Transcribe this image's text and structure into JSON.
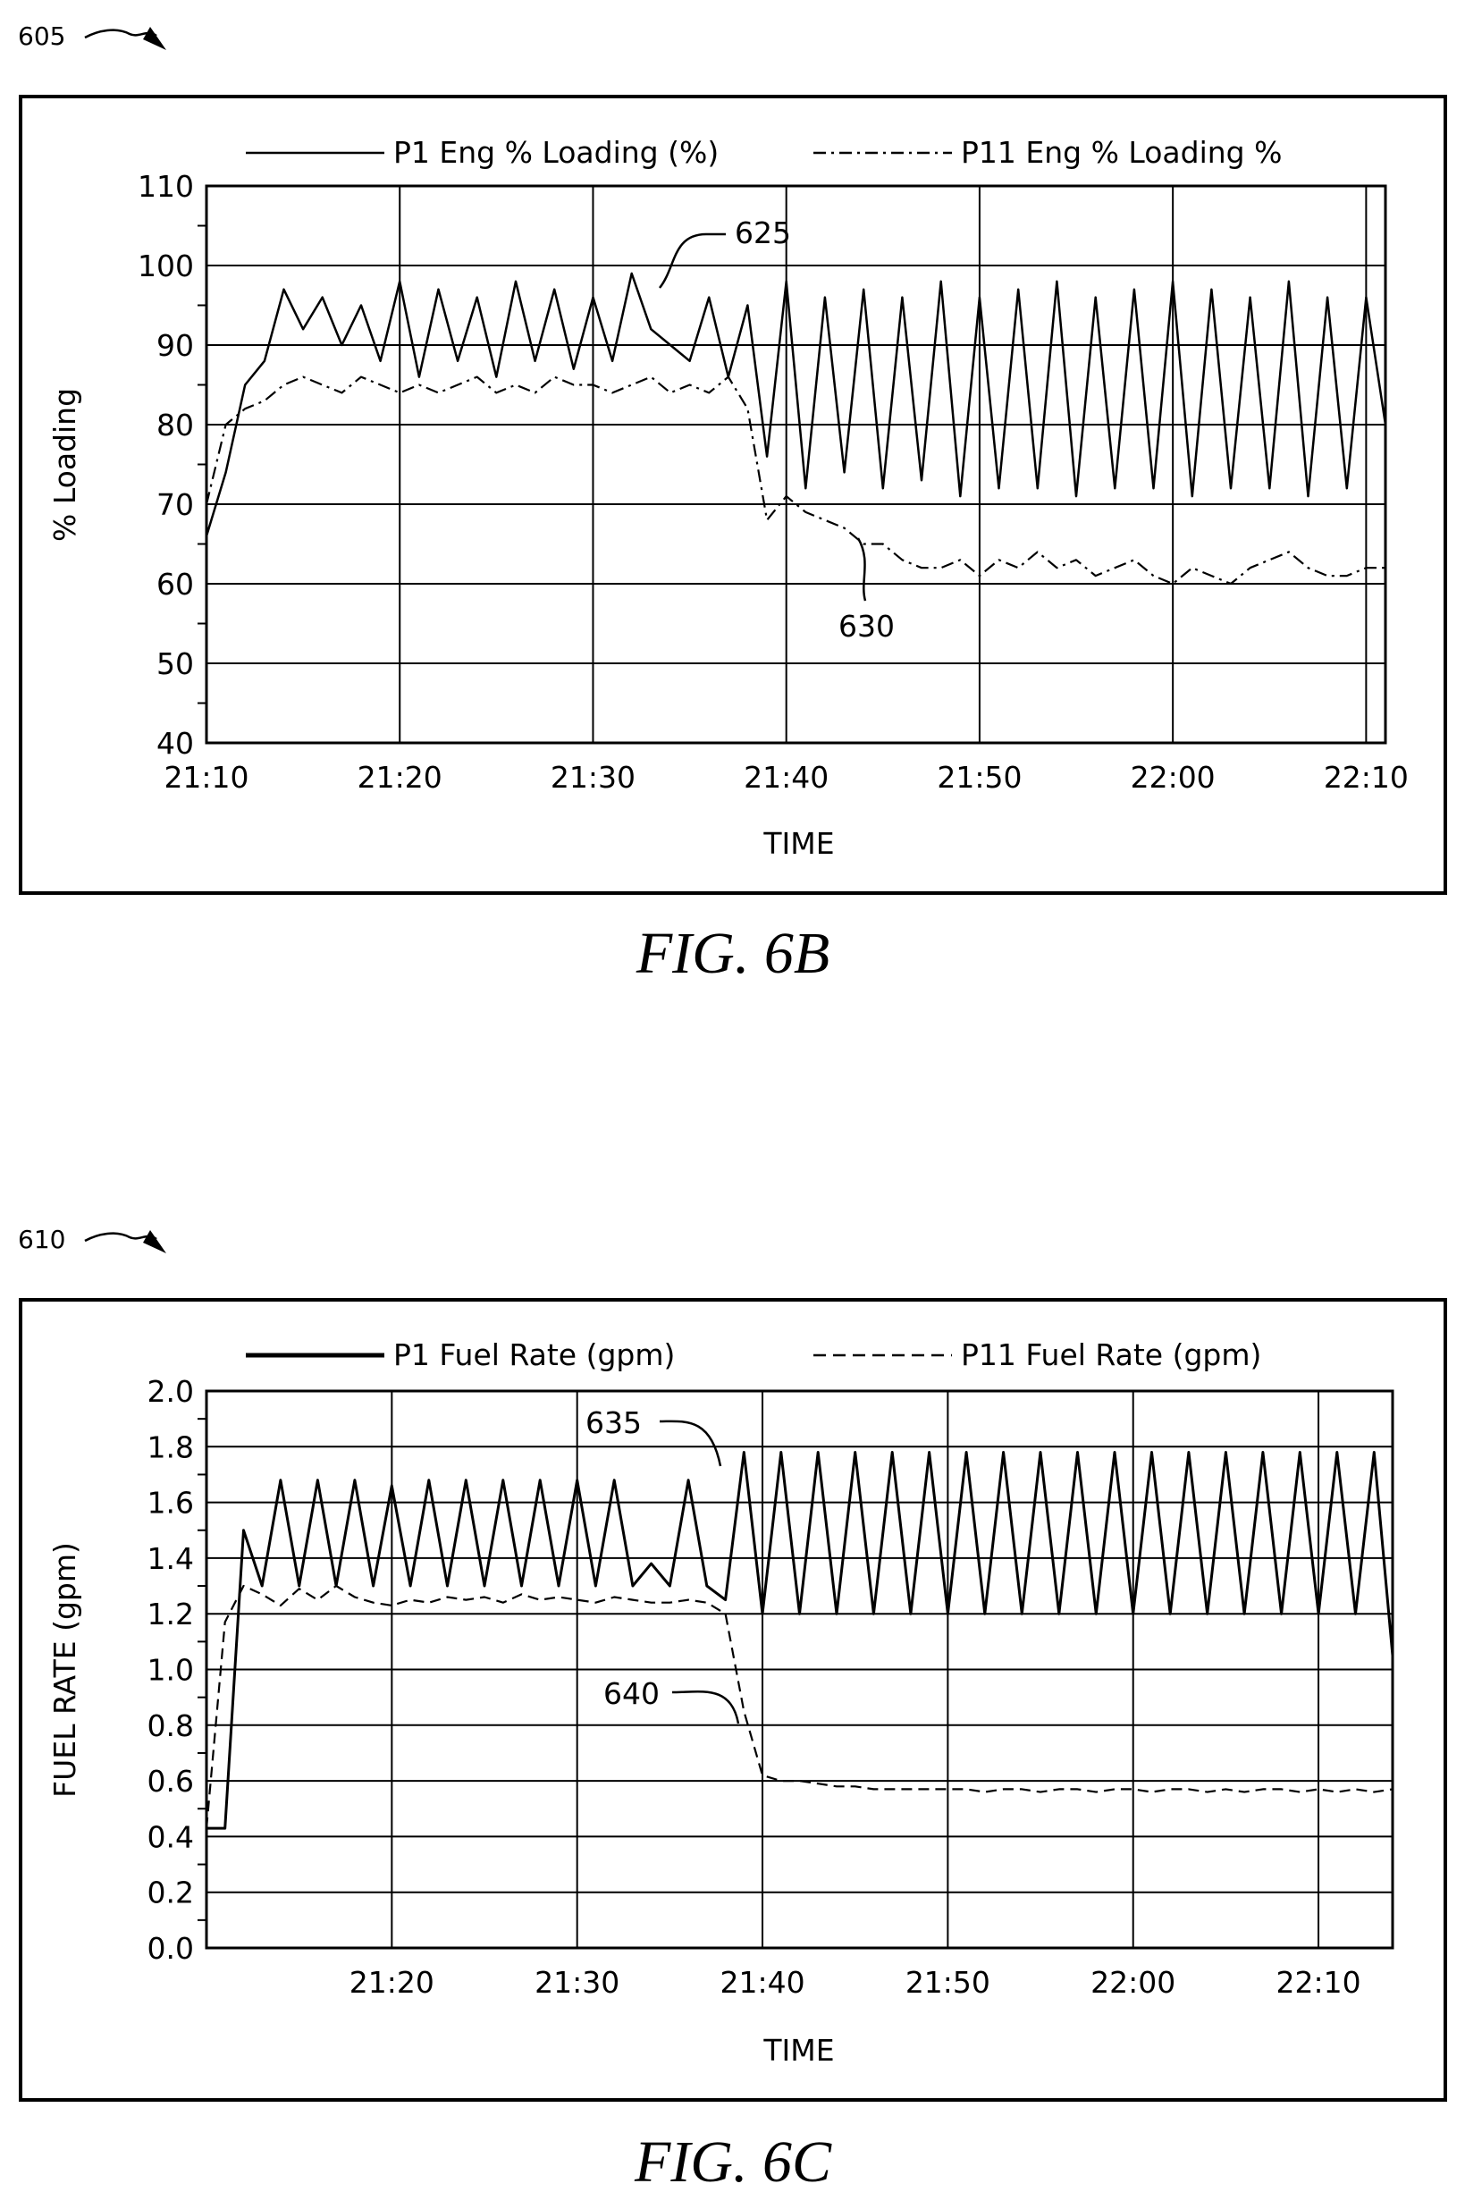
{
  "figures": [
    {
      "ref_label": "605",
      "caption": "FIG. 6B",
      "legend": [
        "P1 Eng % Loading (%)",
        "P11 Eng % Loading %"
      ],
      "annotations": [
        {
          "label": "625",
          "target_series": "P1 Eng % Loading (%)"
        },
        {
          "label": "630",
          "target_series": "P11 Eng % Loading %"
        }
      ]
    },
    {
      "ref_label": "610",
      "caption": "FIG. 6C",
      "legend": [
        "P1 Fuel Rate (gpm)",
        "P11 Fuel Rate (gpm)"
      ],
      "annotations": [
        {
          "label": "635",
          "target_series": "P1 Fuel Rate (gpm)"
        },
        {
          "label": "640",
          "target_series": "P11 Fuel Rate (gpm)"
        }
      ]
    }
  ],
  "chart_data": [
    {
      "type": "line",
      "title": "",
      "xlabel": "TIME",
      "ylabel": "% Loading",
      "xlim": [
        "21:10",
        "22:11"
      ],
      "ylim": [
        40,
        110
      ],
      "x_ticks": [
        "21:10",
        "21:20",
        "21:30",
        "21:40",
        "21:50",
        "22:00",
        "22:10"
      ],
      "y_ticks": [
        40,
        50,
        60,
        70,
        80,
        90,
        100,
        110
      ],
      "grid": true,
      "legend_position": "top",
      "series": [
        {
          "name": "P1 Eng % Loading (%)",
          "style": "solid",
          "x": [
            "21:10",
            "21:11",
            "21:12",
            "21:13",
            "21:14",
            "21:15",
            "21:16",
            "21:17",
            "21:18",
            "21:19",
            "21:20",
            "21:21",
            "21:22",
            "21:23",
            "21:24",
            "21:25",
            "21:26",
            "21:27",
            "21:28",
            "21:29",
            "21:30",
            "21:31",
            "21:32",
            "21:33",
            "21:34",
            "21:35",
            "21:36",
            "21:37",
            "21:38",
            "21:39",
            "21:40",
            "21:41",
            "21:42",
            "21:43",
            "21:44",
            "21:45",
            "21:46",
            "21:47",
            "21:48",
            "21:49",
            "21:50",
            "21:51",
            "21:52",
            "21:53",
            "21:54",
            "21:55",
            "21:56",
            "21:57",
            "21:58",
            "21:59",
            "22:00",
            "22:01",
            "22:02",
            "22:03",
            "22:04",
            "22:05",
            "22:06",
            "22:07",
            "22:08",
            "22:09",
            "22:10",
            "22:11"
          ],
          "values": [
            66,
            74,
            85,
            88,
            97,
            92,
            96,
            90,
            95,
            88,
            98,
            86,
            97,
            88,
            96,
            86,
            98,
            88,
            97,
            87,
            96,
            88,
            99,
            92,
            90,
            88,
            96,
            86,
            95,
            76,
            98,
            72,
            96,
            74,
            97,
            72,
            96,
            73,
            98,
            71,
            96,
            72,
            97,
            72,
            98,
            71,
            96,
            72,
            97,
            72,
            98,
            71,
            97,
            72,
            96,
            72,
            98,
            71,
            96,
            72,
            96,
            80
          ]
        },
        {
          "name": "P11 Eng % Loading %",
          "style": "dash-dot",
          "x": [
            "21:10",
            "21:11",
            "21:12",
            "21:13",
            "21:14",
            "21:15",
            "21:16",
            "21:17",
            "21:18",
            "21:19",
            "21:20",
            "21:21",
            "21:22",
            "21:23",
            "21:24",
            "21:25",
            "21:26",
            "21:27",
            "21:28",
            "21:29",
            "21:30",
            "21:31",
            "21:32",
            "21:33",
            "21:34",
            "21:35",
            "21:36",
            "21:37",
            "21:38",
            "21:39",
            "21:40",
            "21:41",
            "21:42",
            "21:43",
            "21:44",
            "21:45",
            "21:46",
            "21:47",
            "21:48",
            "21:49",
            "21:50",
            "21:51",
            "21:52",
            "21:53",
            "21:54",
            "21:55",
            "21:56",
            "21:57",
            "21:58",
            "21:59",
            "22:00",
            "22:01",
            "22:02",
            "22:03",
            "22:04",
            "22:05",
            "22:06",
            "22:07",
            "22:08",
            "22:09",
            "22:10",
            "22:11"
          ],
          "values": [
            70,
            80,
            82,
            83,
            85,
            86,
            85,
            84,
            86,
            85,
            84,
            85,
            84,
            85,
            86,
            84,
            85,
            84,
            86,
            85,
            85,
            84,
            85,
            86,
            84,
            85,
            84,
            86,
            82,
            68,
            71,
            69,
            68,
            67,
            65,
            65,
            63,
            62,
            62,
            63,
            61,
            63,
            62,
            64,
            62,
            63,
            61,
            62,
            63,
            61,
            60,
            62,
            61,
            60,
            62,
            63,
            64,
            62,
            61,
            61,
            62,
            62
          ]
        }
      ]
    },
    {
      "type": "line",
      "title": "",
      "xlabel": "TIME",
      "ylabel": "FUEL RATE (gpm)",
      "xlim": [
        "21:10",
        "22:14"
      ],
      "ylim": [
        0.0,
        2.0
      ],
      "x_ticks": [
        "21:20",
        "21:30",
        "21:40",
        "21:50",
        "22:00",
        "22:10"
      ],
      "y_ticks": [
        0.0,
        0.2,
        0.4,
        0.6,
        0.8,
        1.0,
        1.2,
        1.4,
        1.6,
        1.8,
        2.0
      ],
      "grid": true,
      "legend_position": "top",
      "series": [
        {
          "name": "P1 Fuel Rate (gpm)",
          "style": "solid",
          "x": [
            "21:10",
            "21:11",
            "21:12",
            "21:13",
            "21:14",
            "21:15",
            "21:16",
            "21:17",
            "21:18",
            "21:19",
            "21:20",
            "21:21",
            "21:22",
            "21:23",
            "21:24",
            "21:25",
            "21:26",
            "21:27",
            "21:28",
            "21:29",
            "21:30",
            "21:31",
            "21:32",
            "21:33",
            "21:34",
            "21:35",
            "21:36",
            "21:37",
            "21:38",
            "21:39",
            "21:40",
            "21:41",
            "21:42",
            "21:43",
            "21:44",
            "21:45",
            "21:46",
            "21:47",
            "21:48",
            "21:49",
            "21:50",
            "21:51",
            "21:52",
            "21:53",
            "21:54",
            "21:55",
            "21:56",
            "21:57",
            "21:58",
            "21:59",
            "22:00",
            "22:01",
            "22:02",
            "22:03",
            "22:04",
            "22:05",
            "22:06",
            "22:07",
            "22:08",
            "22:09",
            "22:10",
            "22:11",
            "22:12",
            "22:13",
            "22:14"
          ],
          "values": [
            0.43,
            0.43,
            1.5,
            1.3,
            1.68,
            1.3,
            1.68,
            1.3,
            1.68,
            1.3,
            1.66,
            1.3,
            1.68,
            1.3,
            1.68,
            1.3,
            1.68,
            1.3,
            1.68,
            1.3,
            1.68,
            1.3,
            1.68,
            1.3,
            1.38,
            1.3,
            1.68,
            1.3,
            1.25,
            1.78,
            1.2,
            1.78,
            1.2,
            1.78,
            1.2,
            1.78,
            1.2,
            1.78,
            1.2,
            1.78,
            1.2,
            1.78,
            1.2,
            1.78,
            1.2,
            1.78,
            1.2,
            1.78,
            1.2,
            1.78,
            1.2,
            1.78,
            1.2,
            1.78,
            1.2,
            1.78,
            1.2,
            1.78,
            1.2,
            1.78,
            1.2,
            1.78,
            1.2,
            1.78,
            1.05
          ]
        },
        {
          "name": "P11 Fuel Rate (gpm)",
          "style": "dashed",
          "x": [
            "21:10",
            "21:11",
            "21:12",
            "21:13",
            "21:14",
            "21:15",
            "21:16",
            "21:17",
            "21:18",
            "21:19",
            "21:20",
            "21:21",
            "21:22",
            "21:23",
            "21:24",
            "21:25",
            "21:26",
            "21:27",
            "21:28",
            "21:29",
            "21:30",
            "21:31",
            "21:32",
            "21:33",
            "21:34",
            "21:35",
            "21:36",
            "21:37",
            "21:38",
            "21:39",
            "21:40",
            "21:41",
            "21:42",
            "21:43",
            "21:44",
            "21:45",
            "21:46",
            "21:47",
            "21:48",
            "21:49",
            "21:50",
            "21:51",
            "21:52",
            "21:53",
            "21:54",
            "21:55",
            "21:56",
            "21:57",
            "21:58",
            "21:59",
            "22:00",
            "22:01",
            "22:02",
            "22:03",
            "22:04",
            "22:05",
            "22:06",
            "22:07",
            "22:08",
            "22:09",
            "22:10",
            "22:11",
            "22:12",
            "22:13",
            "22:14"
          ],
          "values": [
            0.43,
            1.17,
            1.3,
            1.27,
            1.23,
            1.29,
            1.25,
            1.3,
            1.26,
            1.24,
            1.23,
            1.25,
            1.24,
            1.26,
            1.25,
            1.26,
            1.24,
            1.27,
            1.25,
            1.26,
            1.25,
            1.24,
            1.26,
            1.25,
            1.24,
            1.24,
            1.25,
            1.24,
            1.2,
            0.85,
            0.62,
            0.6,
            0.6,
            0.59,
            0.58,
            0.58,
            0.57,
            0.57,
            0.57,
            0.57,
            0.57,
            0.57,
            0.56,
            0.57,
            0.57,
            0.56,
            0.57,
            0.57,
            0.56,
            0.57,
            0.57,
            0.56,
            0.57,
            0.57,
            0.56,
            0.57,
            0.56,
            0.57,
            0.57,
            0.56,
            0.57,
            0.56,
            0.57,
            0.56,
            0.57
          ]
        }
      ]
    }
  ]
}
